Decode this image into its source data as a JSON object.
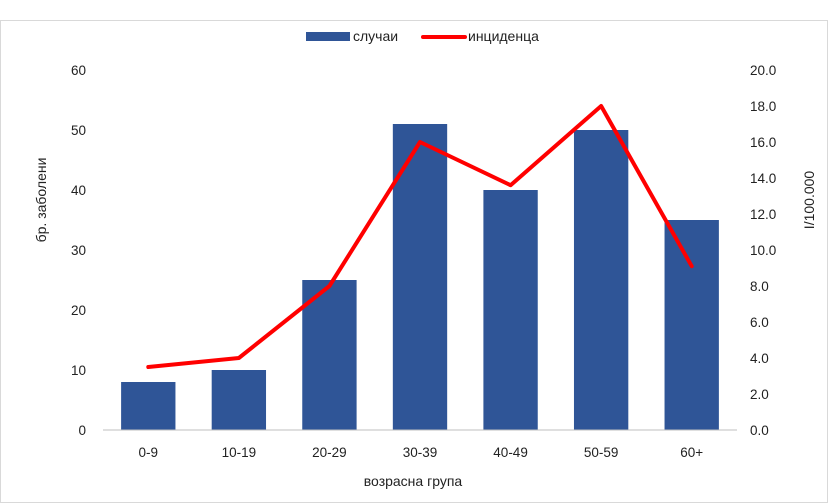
{
  "chart_data": {
    "type": "bar",
    "categories": [
      "0-9",
      "10-19",
      "20-29",
      "30-39",
      "40-49",
      "50-59",
      "60+"
    ],
    "series": [
      {
        "name": "случаи",
        "type": "bar",
        "axis": "left",
        "values": [
          8,
          10,
          25,
          51,
          40,
          50,
          35
        ],
        "color": "#2f5597"
      },
      {
        "name": "инциденца",
        "type": "line",
        "axis": "right",
        "values": [
          3.5,
          4.0,
          8.0,
          16.0,
          13.6,
          18.0,
          9.1
        ],
        "color": "#ff0000"
      }
    ],
    "xlabel": "возрасна група",
    "ylabel": "бр. заболени",
    "y2label": "I/100.000",
    "ylim": [
      0,
      60
    ],
    "y2lim": [
      0,
      20
    ],
    "yticks": [
      "0",
      "10",
      "20",
      "30",
      "40",
      "50",
      "60"
    ],
    "y2ticks": [
      "0.0",
      "2.0",
      "4.0",
      "6.0",
      "8.0",
      "10.0",
      "12.0",
      "14.0",
      "16.0",
      "18.0",
      "20.0"
    ],
    "grid": false,
    "legend_position": "top-center"
  }
}
